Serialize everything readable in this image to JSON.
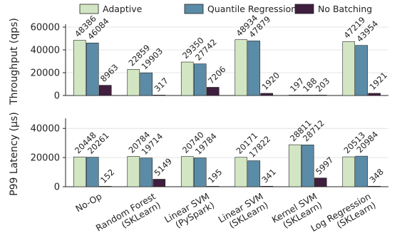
{
  "chart_data": [
    {
      "type": "bar",
      "ylabel": "Throughput (qps)",
      "ylim": [
        0,
        60000
      ],
      "yticks": [
        0,
        20000,
        40000,
        60000
      ],
      "grid": true,
      "categories": [
        "No-Op",
        "Random Forest (SKLearn)",
        "Linear SVM (PySpark)",
        "Linear SVM (SKLearn)",
        "Kernel SVM (SKLearn)",
        "Log Regression (SKLearn)"
      ],
      "series": [
        {
          "name": "Adaptive",
          "color": "#d3e6c3",
          "values": [
            48386,
            22859,
            29350,
            48934,
            197,
            47219
          ]
        },
        {
          "name": "Quantile Regression",
          "color": "#5b8ca7",
          "values": [
            46084,
            19903,
            27742,
            47879,
            188,
            43954
          ]
        },
        {
          "name": "No Batching",
          "color": "#3f1f3d",
          "values": [
            8963,
            317,
            7206,
            1920,
            203,
            1921
          ]
        }
      ]
    },
    {
      "type": "bar",
      "ylabel": "P99 Latency (μs)",
      "ylim": [
        0,
        45000
      ],
      "yticks": [
        0,
        20000,
        40000
      ],
      "grid": true,
      "categories": [
        "No-Op",
        "Random Forest (SKLearn)",
        "Linear SVM (PySpark)",
        "Linear SVM (SKLearn)",
        "Kernel SVM (SKLearn)",
        "Log Regression (SKLearn)"
      ],
      "series": [
        {
          "name": "Adaptive",
          "color": "#d3e6c3",
          "values": [
            20448,
            20784,
            20740,
            20171,
            28811,
            20513
          ]
        },
        {
          "name": "Quantile Regression",
          "color": "#5b8ca7",
          "values": [
            20261,
            19714,
            19784,
            17822,
            28712,
            20984
          ]
        },
        {
          "name": "No Batching",
          "color": "#3f1f3d",
          "values": [
            152,
            5149,
            195,
            341,
            5997,
            348
          ]
        }
      ]
    }
  ],
  "legend": {
    "position": "top",
    "items": [
      "Adaptive",
      "Quantile Regression",
      "No Batching"
    ]
  },
  "category_lines": [
    [
      "No-Op"
    ],
    [
      "Random Forest",
      "(SKLearn)"
    ],
    [
      "Linear SVM",
      "(PySpark)"
    ],
    [
      "Linear SVM",
      "(SKLearn)"
    ],
    [
      "Kernel SVM",
      "(SKLearn)"
    ],
    [
      "Log Regression",
      "(SKLearn)"
    ]
  ]
}
